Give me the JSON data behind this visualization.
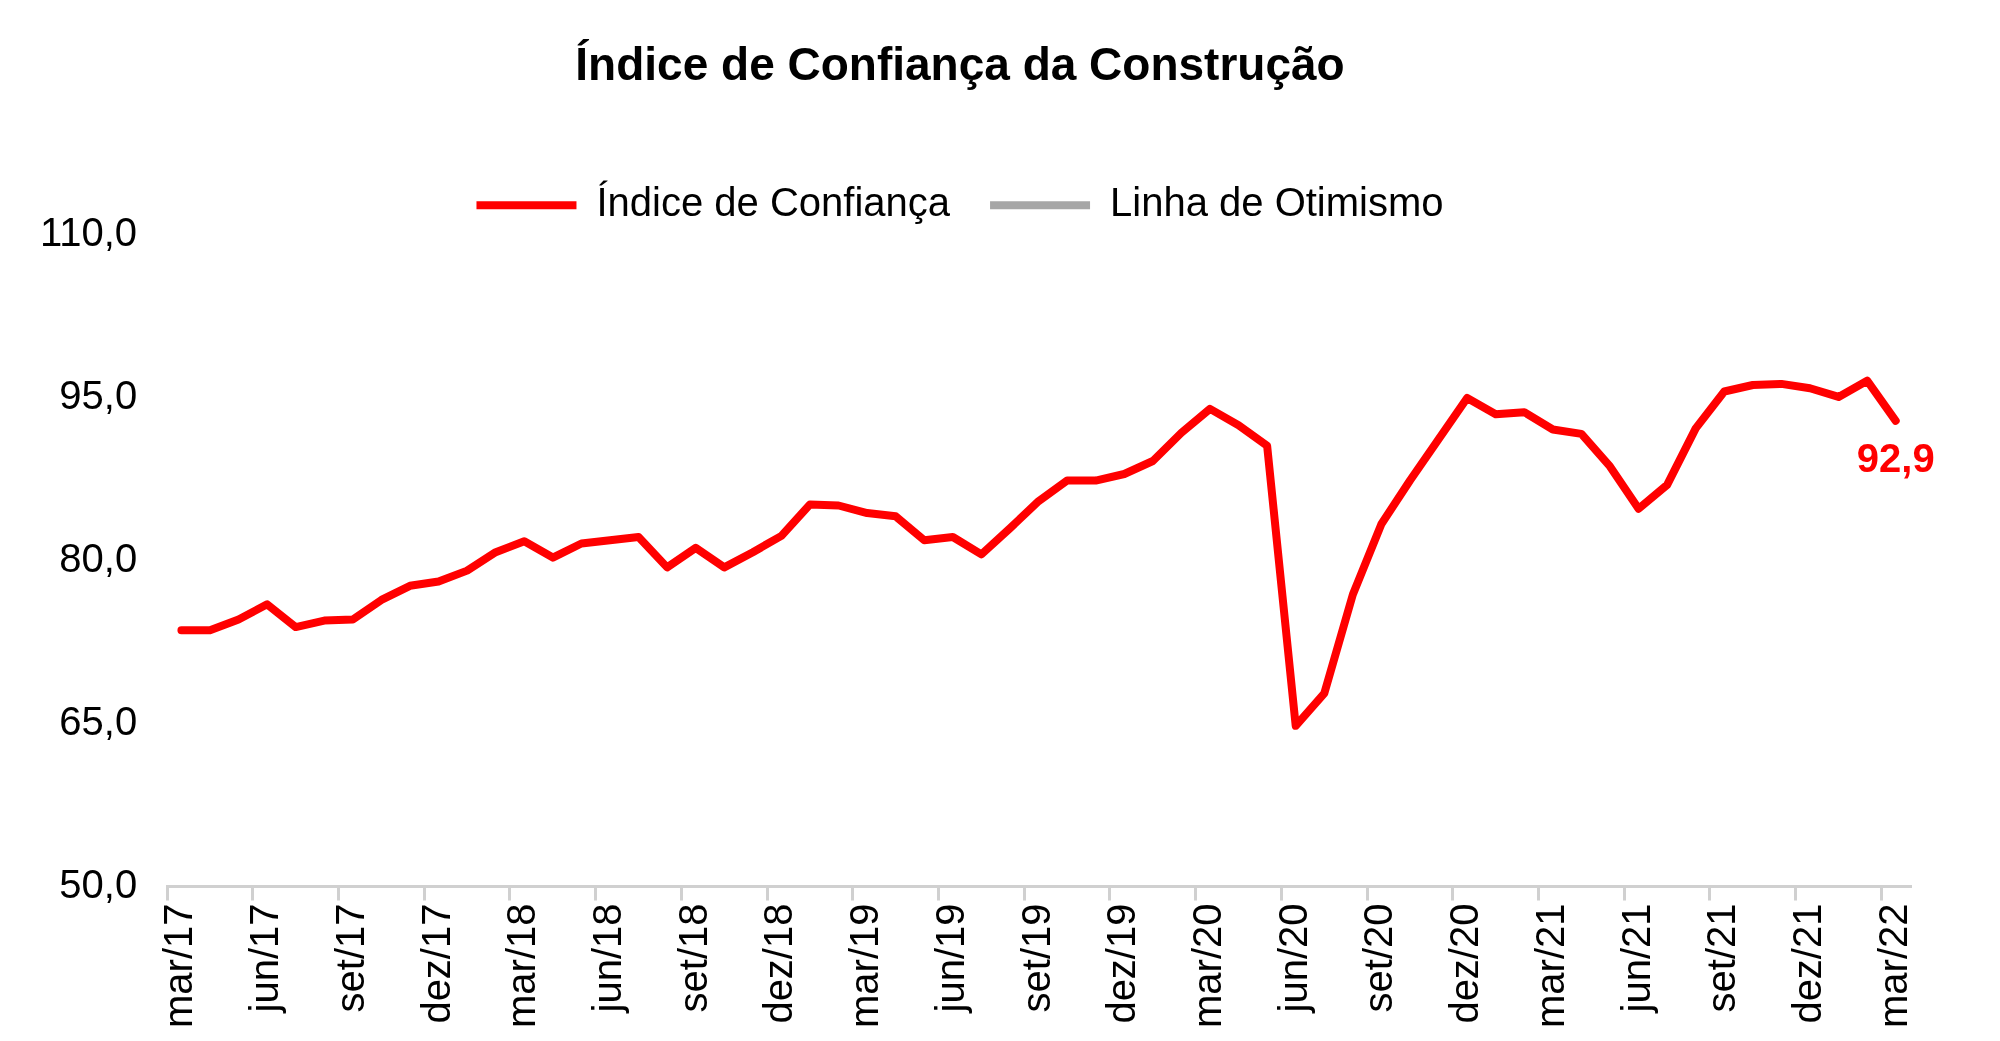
{
  "chart_data": {
    "type": "line",
    "title": "Índice de Confiança da Construção",
    "categories": [
      "mar/17",
      null,
      null,
      "jun/17",
      null,
      null,
      "set/17",
      null,
      null,
      "dez/17",
      null,
      null,
      "mar/18",
      null,
      null,
      "jun/18",
      null,
      null,
      "set/18",
      null,
      null,
      "dez/18",
      null,
      null,
      "mar/19",
      null,
      null,
      "jun/19",
      null,
      null,
      "set/19",
      null,
      null,
      "dez/19",
      null,
      null,
      "mar/20",
      null,
      null,
      "jun/20",
      null,
      null,
      "set/20",
      null,
      null,
      "dez/20",
      null,
      null,
      "mar/21",
      null,
      null,
      "jun/21",
      null,
      null,
      "set/21",
      null,
      null,
      "dez/21",
      null,
      null,
      "mar/22"
    ],
    "series": [
      {
        "name": "Índice de Confiança",
        "color": "#ff0000",
        "line_style": "solid",
        "values": [
          73.6,
          73.6,
          74.6,
          76.0,
          73.9,
          74.5,
          74.6,
          76.4,
          77.7,
          78.1,
          79.1,
          80.8,
          81.8,
          80.3,
          81.6,
          81.9,
          82.2,
          79.4,
          81.2,
          79.4,
          80.8,
          82.3,
          85.2,
          85.1,
          84.4,
          84.1,
          81.9,
          82.2,
          80.6,
          83.0,
          85.5,
          87.4,
          87.4,
          88.0,
          89.2,
          91.8,
          94.0,
          92.5,
          90.6,
          64.8,
          67.8,
          76.9,
          83.4,
          87.4,
          91.2,
          95.0,
          93.5,
          93.7,
          92.1,
          91.7,
          88.7,
          84.8,
          87.0,
          92.2,
          95.6,
          96.2,
          96.3,
          95.9,
          95.1,
          96.6,
          92.9
        ],
        "value_labels": [
          null,
          null,
          null,
          null,
          null,
          null,
          null,
          null,
          null,
          null,
          null,
          null,
          null,
          null,
          null,
          null,
          null,
          null,
          null,
          null,
          null,
          null,
          null,
          null,
          null,
          null,
          null,
          null,
          null,
          null,
          null,
          null,
          null,
          null,
          null,
          null,
          null,
          null,
          null,
          null,
          null,
          null,
          null,
          null,
          null,
          null,
          null,
          null,
          null,
          null,
          null,
          null,
          null,
          null,
          null,
          null,
          null,
          null,
          null,
          null,
          "92,9"
        ]
      },
      {
        "name": "Linha de Otimismo",
        "color": "#a6a6a6",
        "line_style": "dashed",
        "values": [
          null,
          null,
          null,
          null,
          null,
          null,
          null,
          null,
          null,
          null,
          null,
          null,
          null,
          null,
          null,
          null,
          null,
          null,
          null,
          null,
          null,
          null,
          null,
          null,
          null,
          null,
          null,
          null,
          null,
          null,
          null,
          null,
          null,
          null,
          null,
          null,
          null,
          null,
          null,
          null,
          null,
          null,
          null,
          null,
          null,
          null,
          null,
          null,
          null,
          null,
          null,
          null,
          null,
          null,
          null,
          null,
          null,
          null,
          null,
          null,
          null
        ]
      }
    ],
    "ylim": [
      50,
      110
    ],
    "yticks": [
      {
        "value": 50,
        "label": "50,0"
      },
      {
        "value": 65,
        "label": "65,0"
      },
      {
        "value": 80,
        "label": "80,0"
      },
      {
        "value": 95,
        "label": "95,0"
      },
      {
        "value": 110,
        "label": "110,0"
      }
    ],
    "grid": false,
    "legend": "top",
    "marker": "none"
  }
}
